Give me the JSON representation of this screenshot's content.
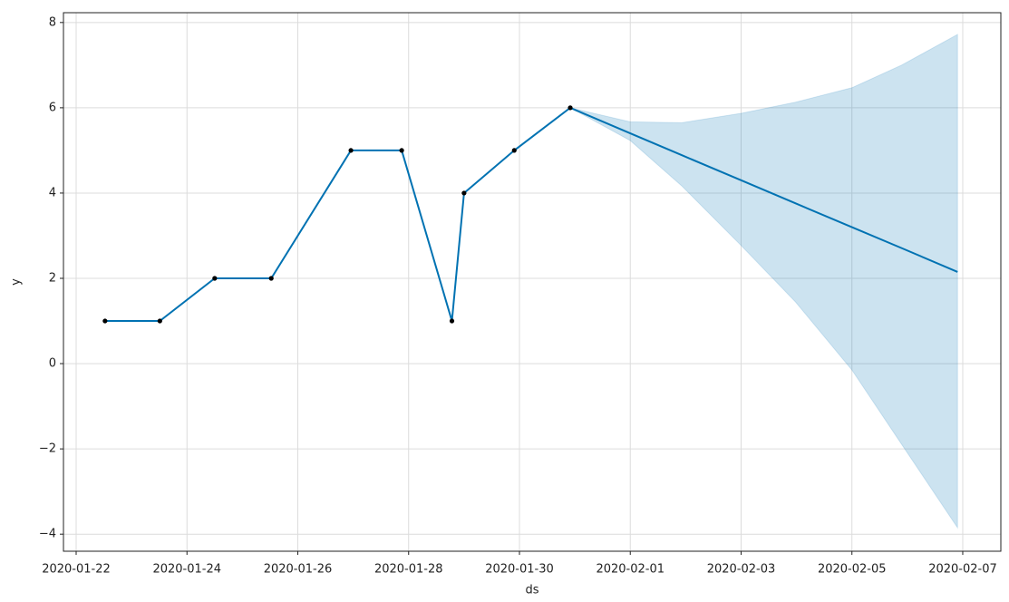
{
  "chart_data": {
    "type": "line",
    "x_label": "ds",
    "y_label": "y",
    "x": [
      "2020-01-22T12:30",
      "2020-01-23T12:15",
      "2020-01-24T12:00",
      "2020-01-25T12:30",
      "2020-01-26T23:00",
      "2020-01-27T21:00",
      "2020-01-28T18:45",
      "2020-01-29T00:00",
      "2020-01-29T21:45",
      "2020-01-30T22:00",
      "2020-02-01T00:00",
      "2020-02-01T22:15",
      "2020-02-03T00:00",
      "2020-02-03T23:30",
      "2020-02-05T00:00",
      "2020-02-05T21:30",
      "2020-02-06T21:45"
    ],
    "series": [
      {
        "color": "#000000",
        "marker": "dot",
        "values": [
          1,
          1,
          2,
          2,
          5,
          5,
          1,
          4,
          5,
          6,
          null,
          null,
          null,
          null,
          null,
          null,
          null
        ]
      },
      {
        "color": "#0072b2",
        "values": [
          1,
          1,
          2,
          2,
          5,
          5,
          1,
          4,
          5,
          6,
          5.4,
          4.89,
          4.3,
          3.76,
          3.2,
          2.71,
          2.15
        ]
      }
    ],
    "band": {
      "color": "#0072b2",
      "lower": [
        null,
        null,
        null,
        null,
        null,
        null,
        null,
        null,
        null,
        6,
        5.23,
        4.17,
        2.77,
        1.45,
        -0.15,
        -1.89,
        -3.85
      ],
      "upper": [
        null,
        null,
        null,
        null,
        null,
        null,
        null,
        null,
        null,
        6,
        5.67,
        5.65,
        5.87,
        6.13,
        6.47,
        7.0,
        7.72
      ]
    },
    "xlim": [
      "2020-01-21T18:30",
      "2020-02-07T16:30"
    ],
    "ylim": [
      -4.4,
      8.23
    ],
    "xticks": [
      "2020-01-22",
      "2020-01-24",
      "2020-01-26",
      "2020-01-28",
      "2020-01-30",
      "2020-02-01",
      "2020-02-03",
      "2020-02-05",
      "2020-02-07"
    ],
    "yticks": [
      {
        "value": -4,
        "label": "−4"
      },
      {
        "value": -2,
        "label": "−2"
      },
      0,
      2,
      4,
      6,
      8
    ],
    "grid": true
  }
}
